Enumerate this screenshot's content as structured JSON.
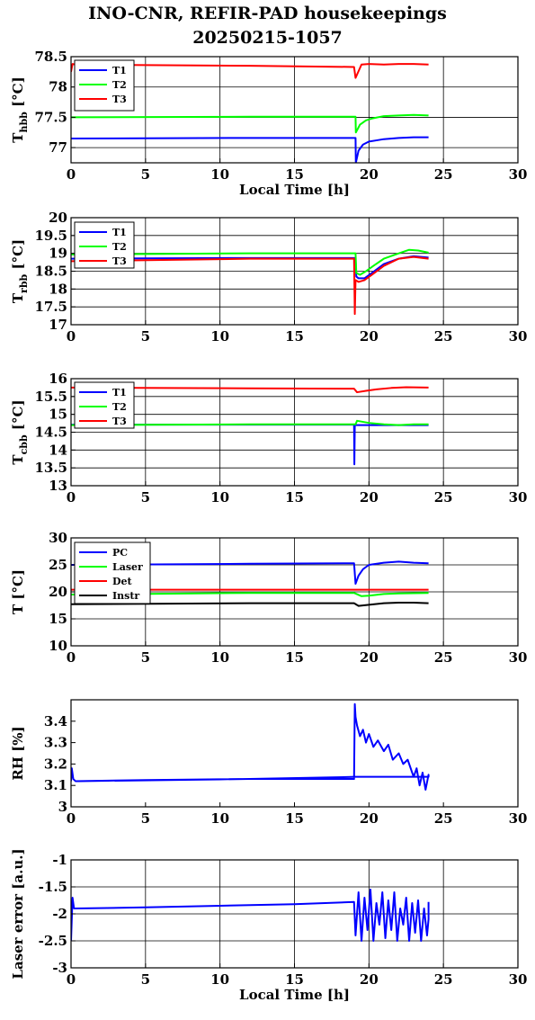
{
  "title_line1": "INO-CNR, REFIR-PAD housekeepings",
  "title_line2": "20250215-1057",
  "chart_data": [
    {
      "type": "line",
      "ylabel_main": "T",
      "ylabel_sub": "hbb",
      "ylabel_unit": "[°C]",
      "xlabel": "Local Time [h]",
      "xlim": [
        0,
        30
      ],
      "ylim": [
        76.75,
        78.5
      ],
      "xticks": [
        0,
        5,
        10,
        15,
        20,
        25,
        30
      ],
      "yticks": [
        77,
        77.5,
        78,
        78.5
      ],
      "grid": true,
      "legend": "top-left",
      "series": [
        {
          "name": "T1",
          "color": "#0000ff",
          "x": [
            0,
            12,
            19.1,
            19.12,
            19.3,
            19.6,
            20,
            20.5,
            21,
            22,
            23,
            24
          ],
          "y": [
            77.15,
            77.16,
            77.16,
            76.75,
            76.95,
            77.05,
            77.1,
            77.12,
            77.14,
            77.16,
            77.17,
            77.17
          ]
        },
        {
          "name": "T2",
          "color": "#00ff00",
          "x": [
            0,
            12,
            19.1,
            19.12,
            19.4,
            19.8,
            20.2,
            21,
            22,
            23,
            24
          ],
          "y": [
            77.5,
            77.51,
            77.51,
            77.25,
            77.38,
            77.45,
            77.48,
            77.52,
            77.53,
            77.54,
            77.53
          ]
        },
        {
          "name": "T3",
          "color": "#ff0000",
          "x": [
            0,
            0.1,
            0.3,
            12,
            19,
            19.1,
            19.5,
            20,
            21,
            22,
            23,
            24
          ],
          "y": [
            78.25,
            78.38,
            78.37,
            78.35,
            78.33,
            78.15,
            78.37,
            78.38,
            78.37,
            78.38,
            78.38,
            78.37
          ]
        }
      ]
    },
    {
      "type": "line",
      "ylabel_main": "T",
      "ylabel_sub": "rbb",
      "ylabel_unit": "[°C]",
      "xlim": [
        0,
        30
      ],
      "ylim": [
        17,
        20
      ],
      "xticks": [
        0,
        5,
        10,
        15,
        20,
        25,
        30
      ],
      "yticks": [
        17,
        17.5,
        18,
        18.5,
        19,
        19.5,
        20
      ],
      "grid": true,
      "legend": "top-left",
      "series": [
        {
          "name": "T1",
          "color": "#0000ff",
          "x": [
            0,
            12,
            19.1,
            19.15,
            19.3,
            19.7,
            20.2,
            21,
            22,
            23,
            24
          ],
          "y": [
            18.85,
            18.87,
            18.87,
            18.35,
            18.3,
            18.3,
            18.45,
            18.7,
            18.85,
            18.92,
            18.88
          ]
        },
        {
          "name": "T2",
          "color": "#00ff00",
          "x": [
            0,
            12,
            19.1,
            19.15,
            19.4,
            19.8,
            20.3,
            21,
            22,
            22.7,
            23.3,
            24
          ],
          "y": [
            18.97,
            19.0,
            19.0,
            18.45,
            18.4,
            18.5,
            18.65,
            18.85,
            19.0,
            19.1,
            19.08,
            19.02
          ]
        },
        {
          "name": "T3",
          "color": "#ff0000",
          "x": [
            0,
            12,
            19,
            19.05,
            19.1,
            19.3,
            19.7,
            20.2,
            21,
            22,
            23,
            24
          ],
          "y": [
            18.78,
            18.85,
            18.85,
            17.3,
            18.25,
            18.2,
            18.25,
            18.4,
            18.65,
            18.85,
            18.9,
            18.85
          ]
        }
      ]
    },
    {
      "type": "line",
      "ylabel_main": "T",
      "ylabel_sub": "cbb",
      "ylabel_unit": "[°C]",
      "xlim": [
        0,
        30
      ],
      "ylim": [
        13,
        16
      ],
      "xticks": [
        0,
        5,
        10,
        15,
        20,
        25,
        30
      ],
      "yticks": [
        13,
        13.5,
        14,
        14.5,
        15,
        15.5,
        16
      ],
      "grid": true,
      "legend": "top-left",
      "series": [
        {
          "name": "T1",
          "color": "#0000ff",
          "x": [
            0,
            19.0,
            19.02,
            19.05,
            24
          ],
          "y": [
            14.71,
            14.71,
            13.6,
            14.7,
            14.7
          ]
        },
        {
          "name": "T2",
          "color": "#00ff00",
          "x": [
            0,
            12,
            19.1,
            19.2,
            20,
            21,
            22,
            23,
            24
          ],
          "y": [
            14.7,
            14.72,
            14.72,
            14.82,
            14.76,
            14.72,
            14.7,
            14.72,
            14.72
          ]
        },
        {
          "name": "T3",
          "color": "#ff0000",
          "x": [
            0,
            12,
            19,
            19.2,
            19.8,
            20.5,
            21.5,
            22.5,
            24
          ],
          "y": [
            15.75,
            15.73,
            15.72,
            15.62,
            15.66,
            15.7,
            15.74,
            15.76,
            15.75
          ]
        }
      ]
    },
    {
      "type": "line",
      "ylabel_main": "T [°C]",
      "xlim": [
        0,
        30
      ],
      "ylim": [
        10,
        30
      ],
      "xticks": [
        0,
        5,
        10,
        15,
        20,
        25,
        30
      ],
      "yticks": [
        10,
        15,
        20,
        25,
        30
      ],
      "grid": true,
      "legend": "top-left",
      "series": [
        {
          "name": "PC",
          "color": "#0000ff",
          "x": [
            0,
            12,
            19,
            19.1,
            19.3,
            19.6,
            20,
            21,
            22,
            23,
            24
          ],
          "y": [
            25.0,
            25.2,
            25.3,
            21.5,
            23.0,
            24.2,
            25.0,
            25.4,
            25.6,
            25.4,
            25.3
          ]
        },
        {
          "name": "Laser",
          "color": "#00ff00",
          "x": [
            0,
            12,
            19,
            19.5,
            20,
            21,
            22,
            24
          ],
          "y": [
            19.5,
            19.8,
            19.8,
            19.2,
            19.3,
            19.6,
            19.7,
            19.8
          ]
        },
        {
          "name": "Det",
          "color": "#ff0000",
          "x": [
            0,
            24
          ],
          "y": [
            20.4,
            20.4
          ]
        },
        {
          "name": "Instr",
          "color": "#000000",
          "x": [
            0,
            12,
            19,
            19.3,
            20,
            21,
            22,
            23,
            24
          ],
          "y": [
            17.7,
            17.9,
            17.9,
            17.4,
            17.6,
            17.9,
            18.0,
            18.0,
            17.9
          ]
        }
      ]
    },
    {
      "type": "line",
      "ylabel_main": "RH [%]",
      "xlim": [
        0,
        30
      ],
      "ylim": [
        3,
        3.5
      ],
      "xticks": [
        0,
        5,
        10,
        15,
        20,
        25,
        30
      ],
      "yticks": [
        3,
        3.1,
        3.2,
        3.3,
        3.4
      ],
      "grid": false,
      "series": [
        {
          "color": "#0000ff",
          "x": [
            0,
            0.05,
            0.15,
            0.3,
            5,
            12,
            19,
            19.05,
            19.1,
            19.2,
            19.4,
            19.6,
            19.8,
            20,
            20.3,
            20.6,
            21,
            21.3,
            21.6,
            22,
            22.3,
            22.6,
            23,
            23.2,
            23.4,
            23.6,
            23.8,
            24,
            24,
            19.1,
            12,
            0.5
          ],
          "y": [
            3.12,
            3.18,
            3.13,
            3.12,
            3.125,
            3.13,
            3.13,
            3.48,
            3.42,
            3.38,
            3.33,
            3.36,
            3.3,
            3.34,
            3.28,
            3.31,
            3.26,
            3.29,
            3.22,
            3.25,
            3.2,
            3.22,
            3.14,
            3.18,
            3.1,
            3.16,
            3.08,
            3.15,
            3.14,
            3.14,
            3.13,
            3.12
          ]
        }
      ]
    },
    {
      "type": "line",
      "ylabel_main": "Laser error [a.u.]",
      "xlabel": "Local Time [h]",
      "xlim": [
        0,
        30
      ],
      "ylim": [
        -3,
        -1
      ],
      "xticks": [
        0,
        5,
        10,
        15,
        20,
        25,
        30
      ],
      "yticks": [
        -3,
        -2.5,
        -2,
        -1.5,
        -1
      ],
      "grid": true,
      "series": [
        {
          "color": "#0000ff",
          "x": [
            0,
            0.1,
            0.2,
            0.3,
            5,
            10,
            15,
            19,
            19.1,
            19.3,
            19.5,
            19.7,
            19.9,
            20.1,
            20.3,
            20.5,
            20.7,
            20.9,
            21.1,
            21.3,
            21.5,
            21.7,
            21.9,
            22.1,
            22.3,
            22.5,
            22.7,
            22.9,
            23.1,
            23.3,
            23.5,
            23.7,
            23.9,
            24,
            24
          ],
          "y": [
            -2.5,
            -1.7,
            -1.9,
            -1.9,
            -1.88,
            -1.85,
            -1.82,
            -1.78,
            -2.4,
            -1.6,
            -2.5,
            -1.7,
            -2.3,
            -1.55,
            -2.5,
            -1.8,
            -2.2,
            -1.6,
            -2.45,
            -1.75,
            -2.3,
            -1.6,
            -2.5,
            -1.9,
            -2.2,
            -1.7,
            -2.5,
            -1.8,
            -2.35,
            -1.75,
            -2.5,
            -1.9,
            -2.4,
            -2.1,
            -1.78
          ]
        }
      ]
    }
  ]
}
